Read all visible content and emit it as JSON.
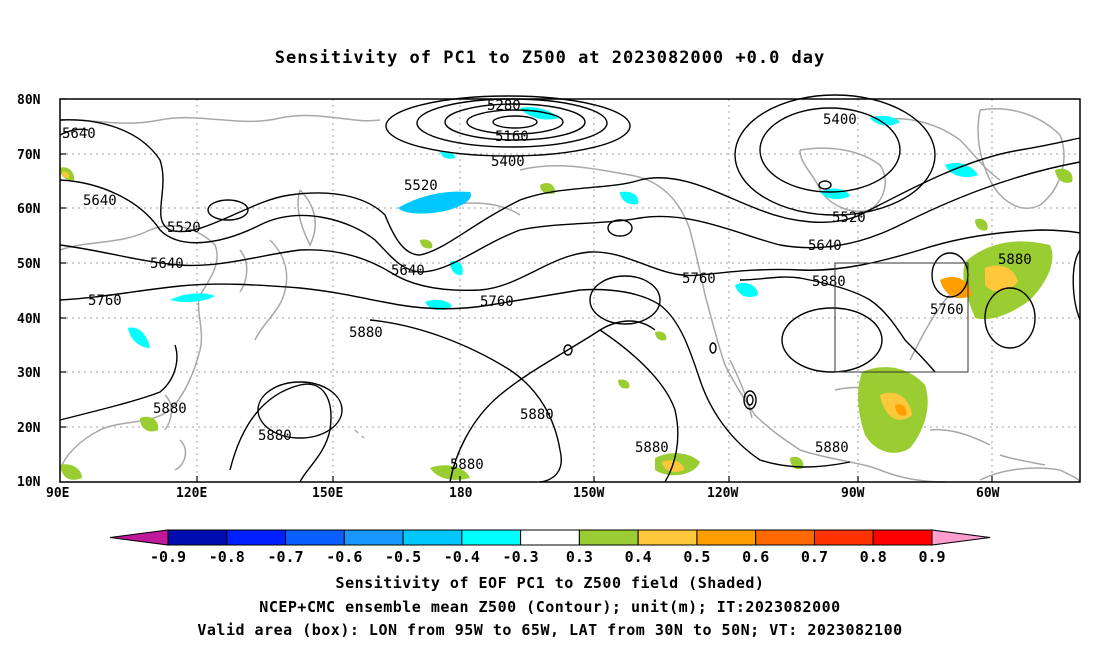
{
  "title": "Sensitivity of PC1 to Z500 at 2023082000 +0.0 day",
  "lat_labels": [
    "80N",
    "70N",
    "60N",
    "50N",
    "40N",
    "30N",
    "20N",
    "10N"
  ],
  "lon_labels": [
    "90E",
    "120E",
    "150E",
    "180",
    "150W",
    "120W",
    "90W",
    "60W"
  ],
  "contour_labels": [
    "5280",
    "5160",
    "5400",
    "5400",
    "5520",
    "5520",
    "5520",
    "5640",
    "5640",
    "5640",
    "5640",
    "5640",
    "5760",
    "5760",
    "5760",
    "5760",
    "5880",
    "5880",
    "5880",
    "5880",
    "5880",
    "5880",
    "5880",
    "5880",
    "5880"
  ],
  "colorbar": {
    "labels": [
      "-0.9",
      "-0.8",
      "-0.7",
      "-0.6",
      "-0.5",
      "-0.4",
      "-0.3",
      "0.3",
      "0.4",
      "0.5",
      "0.6",
      "0.7",
      "0.8",
      "0.9"
    ],
    "colors": [
      "#c0189a",
      "#000bb0",
      "#0020ff",
      "#0a60ff",
      "#1a96ff",
      "#00c8ff",
      "#00ffff",
      "#ffffff",
      "#9acd32",
      "#ffc83c",
      "#ff9e00",
      "#ff6a00",
      "#ff3200",
      "#ff0000",
      "#ff9ecf"
    ]
  },
  "valid_box": {
    "lon_w": "95W",
    "lon_e": "65W",
    "lat_s": "30N",
    "lat_n": "50N"
  },
  "captions": {
    "line1": "Sensitivity of EOF PC1 to Z500 field (Shaded)",
    "line2": "NCEP+CMC ensemble mean Z500 (Contour); unit(m); IT:2023082000",
    "line3": "Valid area (box): LON from 95W to 65W, LAT from 30N to 50N; VT: 2023082100"
  }
}
